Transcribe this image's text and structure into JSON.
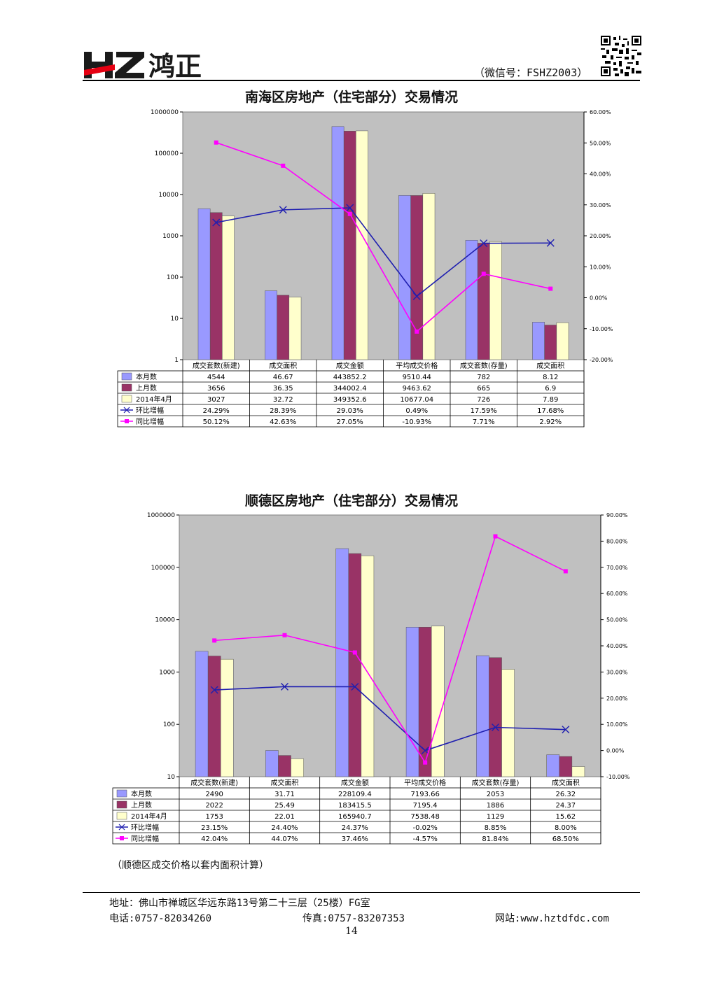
{
  "header": {
    "logo_text": "HZ鸿正",
    "wechat": "（微信号：FSHZ2003）"
  },
  "colors": {
    "series_current": "#9999ff",
    "series_prev": "#993366",
    "series_lastyear": "#ffffcc",
    "mom_line": "#1f1fb0",
    "yoy_line": "#ff00ff",
    "plot_bg": "#c0c0c0"
  },
  "chart_data": [
    {
      "type": "bar",
      "title": "南海区房地产（住宅部分）交易情况",
      "categories": [
        "成交套数(新建)",
        "成交面积",
        "成交金额",
        "平均成交价格",
        "成交套数(存量)",
        "成交面积"
      ],
      "y_scale": "log",
      "ylim": [
        1,
        1000000
      ],
      "y_ticks": [
        "1",
        "10",
        "100",
        "1000",
        "10000",
        "100000",
        "1000000"
      ],
      "y2lim": [
        -0.2,
        0.6
      ],
      "y2_ticks": [
        "-20.00%",
        "-10.00%",
        "0.00%",
        "10.00%",
        "20.00%",
        "30.00%",
        "40.00%",
        "50.00%",
        "60.00%"
      ],
      "series": [
        {
          "name": "本月数",
          "values": [
            4544,
            46.67,
            443852.2,
            9510.44,
            782,
            8.12
          ],
          "labels": [
            "4544",
            "46.67",
            "443852.2",
            "9510.44",
            "782",
            "8.12"
          ]
        },
        {
          "name": "上月数",
          "values": [
            3656,
            36.35,
            344002.4,
            9463.62,
            665,
            6.9
          ],
          "labels": [
            "3656",
            "36.35",
            "344002.4",
            "9463.62",
            "665",
            "6.9"
          ]
        },
        {
          "name": "2014年4月",
          "values": [
            3027,
            32.72,
            349352.6,
            10677.04,
            726,
            7.89
          ],
          "labels": [
            "3027",
            "32.72",
            "349352.6",
            "10677.04",
            "726",
            "7.89"
          ]
        }
      ],
      "lines": [
        {
          "name": "环比增幅",
          "values": [
            0.2429,
            0.2839,
            0.2903,
            0.0049,
            0.1759,
            0.1768
          ],
          "labels": [
            "24.29%",
            "28.39%",
            "29.03%",
            "0.49%",
            "17.59%",
            "17.68%"
          ]
        },
        {
          "name": "同比增幅",
          "values": [
            0.5012,
            0.4263,
            0.2705,
            -0.1093,
            0.0771,
            0.0292
          ],
          "labels": [
            "50.12%",
            "42.63%",
            "27.05%",
            "-10.93%",
            "7.71%",
            "2.92%"
          ]
        }
      ]
    },
    {
      "type": "bar",
      "title": "顺德区房地产（住宅部分）交易情况",
      "categories": [
        "成交套数(新建)",
        "成交面积",
        "成交金额",
        "平均成交价格",
        "成交套数(存量)",
        "成交面积"
      ],
      "y_scale": "log",
      "ylim": [
        10,
        1000000
      ],
      "y_ticks": [
        "10",
        "100",
        "1000",
        "10000",
        "100000",
        "1000000"
      ],
      "y2lim": [
        -0.1,
        0.9
      ],
      "y2_ticks": [
        "-10.00%",
        "0.00%",
        "10.00%",
        "20.00%",
        "30.00%",
        "40.00%",
        "50.00%",
        "60.00%",
        "70.00%",
        "80.00%",
        "90.00%"
      ],
      "series": [
        {
          "name": "本月数",
          "values": [
            2490,
            31.71,
            228109.4,
            7193.66,
            2053,
            26.32
          ],
          "labels": [
            "2490",
            "31.71",
            "228109.4",
            "7193.66",
            "2053",
            "26.32"
          ]
        },
        {
          "name": "上月数",
          "values": [
            2022,
            25.49,
            183415.5,
            7195.4,
            1886,
            24.37
          ],
          "labels": [
            "2022",
            "25.49",
            "183415.5",
            "7195.4",
            "1886",
            "24.37"
          ]
        },
        {
          "name": "2014年4月",
          "values": [
            1753,
            22.01,
            165940.7,
            7538.48,
            1129,
            15.62
          ],
          "labels": [
            "1753",
            "22.01",
            "165940.7",
            "7538.48",
            "1129",
            "15.62"
          ]
        }
      ],
      "lines": [
        {
          "name": "环比增幅",
          "values": [
            0.2315,
            0.244,
            0.2437,
            -0.0002,
            0.0885,
            0.08
          ],
          "labels": [
            "23.15%",
            "24.40%",
            "24.37%",
            "-0.02%",
            "8.85%",
            "8.00%"
          ]
        },
        {
          "name": "同比增幅",
          "values": [
            0.4204,
            0.4407,
            0.3746,
            -0.0457,
            0.8184,
            0.685
          ],
          "labels": [
            "42.04%",
            "44.07%",
            "37.46%",
            "-4.57%",
            "81.84%",
            "68.50%"
          ]
        }
      ]
    }
  ],
  "note": "（顺德区成交价格以套内面积计算）",
  "footer": {
    "address": "地址：佛山市禅城区华远东路13号第二十三层（25楼）FG室",
    "phone": "电话:0757-82034260",
    "fax": "传真:0757-83207353",
    "website": "网站:www.hztdfdc.com",
    "page": "14"
  }
}
